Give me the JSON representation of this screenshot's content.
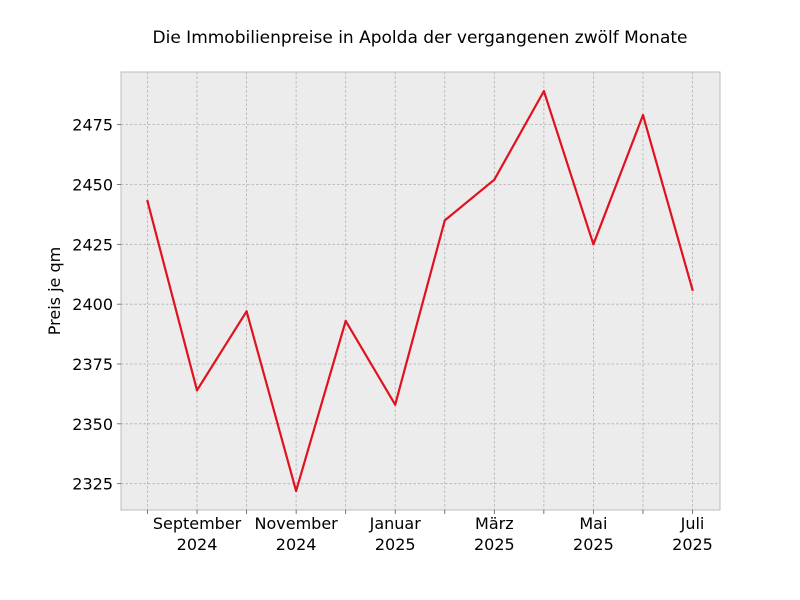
{
  "chart_data": {
    "type": "line",
    "title": "Die Immobilienpreise in Apolda der vergangenen zwölf Monate",
    "xlabel": "",
    "ylabel": "Preis je qm",
    "x": [
      "2024-08",
      "2024-09",
      "2024-10",
      "2024-11",
      "2024-12",
      "2025-01",
      "2025-02",
      "2025-03",
      "2025-04",
      "2025-05",
      "2025-06",
      "2025-07"
    ],
    "series": [
      {
        "name": "",
        "values": [
          2443,
          2364,
          2397,
          2322,
          2393,
          2358,
          2435,
          2452,
          2489,
          2425,
          2479,
          2406
        ]
      }
    ],
    "x_ticks": [
      {
        "x": "2024-09",
        "line1": "September",
        "line2": "2024"
      },
      {
        "x": "2024-11",
        "line1": "November",
        "line2": "2024"
      },
      {
        "x": "2025-01",
        "line1": "Januar",
        "line2": "2025"
      },
      {
        "x": "2025-03",
        "line1": "März",
        "line2": "2025"
      },
      {
        "x": "2025-05",
        "line1": "Mai",
        "line2": "2025"
      },
      {
        "x": "2025-07",
        "line1": "Juli",
        "line2": "2025"
      }
    ],
    "y_ticks": [
      2325,
      2350,
      2375,
      2400,
      2425,
      2450,
      2475
    ],
    "ylim": [
      2314,
      2497
    ],
    "grid": true,
    "colors": {
      "line": "#e0121f",
      "plot_background": "#ececec",
      "grid": "#b0b0b0",
      "frame": "#bdbdbd"
    }
  }
}
